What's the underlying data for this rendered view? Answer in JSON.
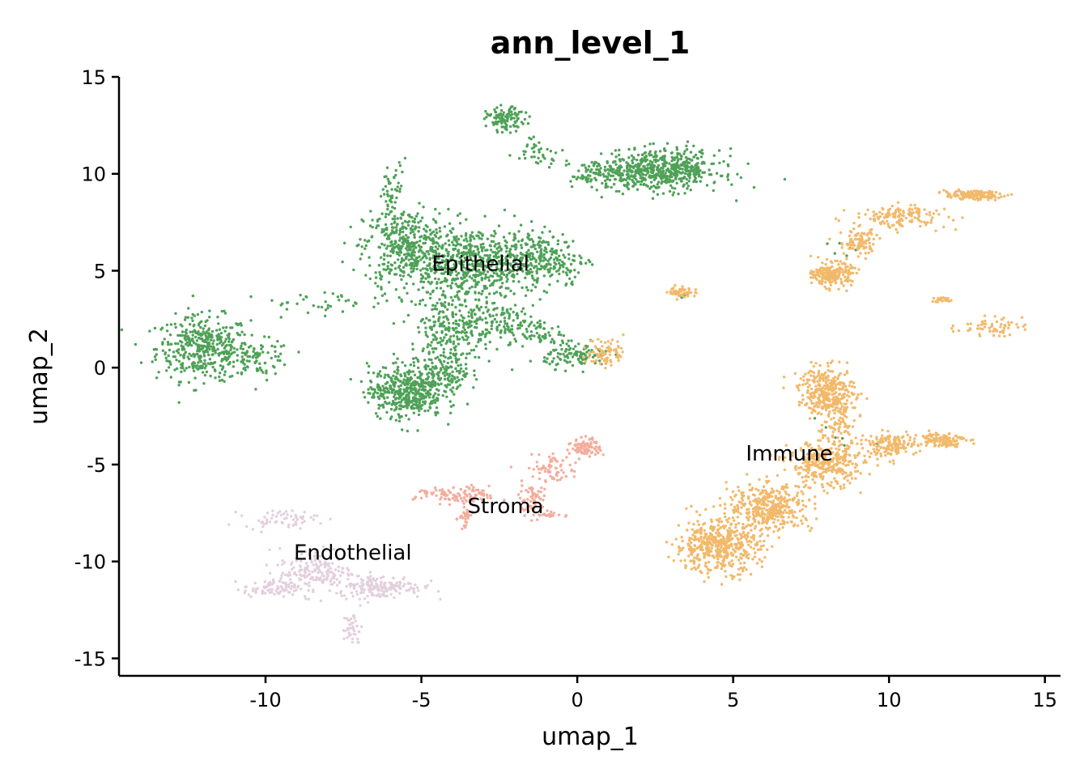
{
  "chart_data": {
    "type": "scatter",
    "title": "ann_level_1",
    "xlabel": "umap_1",
    "ylabel": "umap_2",
    "xlim": [
      -14.7,
      15.5
    ],
    "ylim": [
      -15.9,
      15.0
    ],
    "x_ticks": [
      {
        "value": -10,
        "label": "-10"
      },
      {
        "value": -5,
        "label": "-5"
      },
      {
        "value": 0,
        "label": "0"
      },
      {
        "value": 5,
        "label": "5"
      },
      {
        "value": 10,
        "label": "10"
      },
      {
        "value": 15,
        "label": "15"
      }
    ],
    "y_ticks": [
      {
        "value": 15,
        "label": "15"
      },
      {
        "value": 10,
        "label": "10"
      },
      {
        "value": 5,
        "label": "5"
      },
      {
        "value": 0,
        "label": "0"
      },
      {
        "value": -5,
        "label": "-5"
      },
      {
        "value": -10,
        "label": "-10"
      },
      {
        "value": -15,
        "label": "-15"
      }
    ],
    "grid": false,
    "legend": "on-data",
    "series": [
      {
        "name": "Epithelial",
        "color": "#4ea157",
        "label_pos": [
          -3.1,
          5.0
        ],
        "clusters": [
          {
            "cx": -12.0,
            "cy": 1.0,
            "sx": 1.0,
            "sy": 1.1,
            "n": 420
          },
          {
            "cx": -10.2,
            "cy": 0.5,
            "sx": 0.7,
            "sy": 0.6,
            "n": 80
          },
          {
            "cx": -5.5,
            "cy": 6.2,
            "sx": 0.9,
            "sy": 1.3,
            "n": 380
          },
          {
            "cx": -5.9,
            "cy": 8.8,
            "sx": 0.3,
            "sy": 1.3,
            "n": 60
          },
          {
            "cx": -3.3,
            "cy": 5.3,
            "sx": 1.5,
            "sy": 1.3,
            "n": 620
          },
          {
            "cx": -1.2,
            "cy": 5.6,
            "sx": 1.0,
            "sy": 0.9,
            "n": 220
          },
          {
            "cx": -4.0,
            "cy": 2.0,
            "sx": 0.9,
            "sy": 1.3,
            "n": 260
          },
          {
            "cx": -2.3,
            "cy": 2.3,
            "sx": 0.8,
            "sy": 0.6,
            "n": 110
          },
          {
            "cx": -5.5,
            "cy": -1.2,
            "sx": 0.8,
            "sy": 0.9,
            "n": 460
          },
          {
            "cx": -4.2,
            "cy": -0.3,
            "sx": 0.5,
            "sy": 0.7,
            "n": 110
          },
          {
            "cx": 0.0,
            "cy": 0.6,
            "sx": 0.7,
            "sy": 0.4,
            "n": 110
          },
          {
            "cx": -1.0,
            "cy": 1.5,
            "sx": 0.6,
            "sy": 0.3,
            "n": 40
          },
          {
            "cx": 2.8,
            "cy": 10.2,
            "sx": 1.2,
            "sy": 0.7,
            "n": 520
          },
          {
            "cx": 1.0,
            "cy": 10.0,
            "sx": 0.8,
            "sy": 0.5,
            "n": 140
          },
          {
            "cx": -2.3,
            "cy": 12.8,
            "sx": 0.4,
            "sy": 0.4,
            "n": 110
          },
          {
            "cx": -1.2,
            "cy": 11.2,
            "sx": 0.5,
            "sy": 0.5,
            "n": 40
          },
          {
            "cx": -8.0,
            "cy": 3.3,
            "sx": 1.5,
            "sy": 0.4,
            "n": 40
          },
          {
            "cx": 3.5,
            "cy": 3.8,
            "sx": 0.2,
            "sy": 0.2,
            "n": 4
          },
          {
            "cx": 8.5,
            "cy": 6.0,
            "sx": 0.4,
            "sy": 0.4,
            "n": 6
          },
          {
            "cx": 8.5,
            "cy": -3.0,
            "sx": 1.0,
            "sy": 1.0,
            "n": 6
          }
        ]
      },
      {
        "name": "Immune",
        "color": "#f2b96b",
        "label_pos": [
          6.8,
          -4.8
        ],
        "clusters": [
          {
            "cx": 4.5,
            "cy": -9.2,
            "sx": 0.9,
            "sy": 0.9,
            "n": 480
          },
          {
            "cx": 6.2,
            "cy": -7.2,
            "sx": 0.9,
            "sy": 0.8,
            "n": 380
          },
          {
            "cx": 8.0,
            "cy": -5.0,
            "sx": 0.8,
            "sy": 0.8,
            "n": 320
          },
          {
            "cx": 8.0,
            "cy": -1.2,
            "sx": 0.6,
            "sy": 0.8,
            "n": 300
          },
          {
            "cx": 10.0,
            "cy": -4.0,
            "sx": 0.6,
            "sy": 0.4,
            "n": 140
          },
          {
            "cx": 11.7,
            "cy": -3.7,
            "sx": 0.5,
            "sy": 0.25,
            "n": 120
          },
          {
            "cx": 8.3,
            "cy": -2.5,
            "sx": 0.4,
            "sy": 1.0,
            "n": 100
          },
          {
            "cx": 8.2,
            "cy": 4.8,
            "sx": 0.4,
            "sy": 0.4,
            "n": 220
          },
          {
            "cx": 9.0,
            "cy": 6.5,
            "sx": 0.4,
            "sy": 0.5,
            "n": 90
          },
          {
            "cx": 10.4,
            "cy": 7.8,
            "sx": 1.0,
            "sy": 0.4,
            "n": 140
          },
          {
            "cx": 12.7,
            "cy": 8.9,
            "sx": 0.6,
            "sy": 0.15,
            "n": 140
          },
          {
            "cx": 13.2,
            "cy": 2.1,
            "sx": 0.7,
            "sy": 0.3,
            "n": 60
          },
          {
            "cx": 11.7,
            "cy": 3.5,
            "sx": 0.2,
            "sy": 0.1,
            "n": 20
          },
          {
            "cx": 3.4,
            "cy": 3.9,
            "sx": 0.3,
            "sy": 0.2,
            "n": 50
          },
          {
            "cx": 0.9,
            "cy": 0.8,
            "sx": 0.4,
            "sy": 0.5,
            "n": 80
          }
        ]
      },
      {
        "name": "Stroma",
        "color": "#f3ad9c",
        "label_pos": [
          -2.3,
          -7.5
        ],
        "clusters": [
          {
            "cx": 0.3,
            "cy": -4.1,
            "sx": 0.3,
            "sy": 0.3,
            "n": 90
          },
          {
            "cx": -0.8,
            "cy": -5.2,
            "sx": 0.6,
            "sy": 0.5,
            "n": 70
          },
          {
            "cx": -1.4,
            "cy": -6.8,
            "sx": 0.3,
            "sy": 0.6,
            "n": 60
          },
          {
            "cx": -3.8,
            "cy": -6.6,
            "sx": 0.9,
            "sy": 0.3,
            "n": 110
          },
          {
            "cx": -3.6,
            "cy": -7.8,
            "sx": 0.15,
            "sy": 0.4,
            "n": 30
          },
          {
            "cx": -1.0,
            "cy": -7.6,
            "sx": 0.3,
            "sy": 0.1,
            "n": 20
          }
        ]
      },
      {
        "name": "Endothelial",
        "color": "#e3cfdd",
        "label_pos": [
          -7.2,
          -9.9
        ],
        "clusters": [
          {
            "cx": -9.8,
            "cy": -11.4,
            "sx": 0.6,
            "sy": 0.3,
            "n": 80
          },
          {
            "cx": -8.4,
            "cy": -10.5,
            "sx": 0.8,
            "sy": 0.8,
            "n": 170
          },
          {
            "cx": -6.3,
            "cy": -11.3,
            "sx": 0.9,
            "sy": 0.4,
            "n": 170
          },
          {
            "cx": -9.5,
            "cy": -7.8,
            "sx": 0.8,
            "sy": 0.3,
            "n": 60
          },
          {
            "cx": -7.2,
            "cy": -13.5,
            "sx": 0.2,
            "sy": 0.6,
            "n": 40
          }
        ]
      }
    ]
  }
}
